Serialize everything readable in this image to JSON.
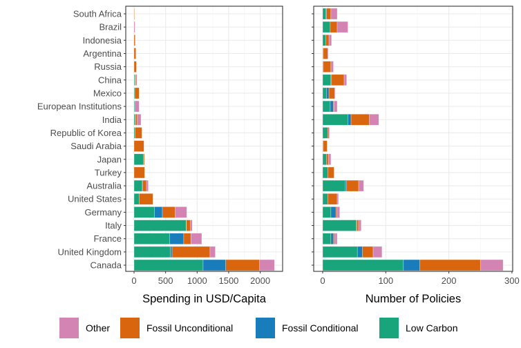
{
  "chart_data": [
    {
      "type": "bar",
      "orientation": "horizontal",
      "stacked": true,
      "xlabel": "Spending in USD/Capita",
      "xlim": [
        0,
        2300
      ],
      "xticks": [
        0,
        500,
        1000,
        1500,
        2000
      ],
      "grid": true,
      "categories": [
        "South Africa",
        "Brazil",
        "Indonesia",
        "Argentina",
        "Russia",
        "China",
        "Mexico",
        "European Institutions",
        "India",
        "Republic of Korea",
        "Saudi Arabia",
        "Japan",
        "Turkey",
        "Australia",
        "United States",
        "Germany",
        "Italy",
        "France",
        "United Kingdom",
        "Canada"
      ],
      "series": [
        {
          "name": "Low Carbon",
          "color": "#19a57c",
          "values": [
            0,
            0,
            0,
            0,
            0,
            11,
            11,
            11,
            18,
            18,
            0,
            150,
            0,
            131,
            80,
            325,
            825,
            566,
            577,
            1095
          ]
        },
        {
          "name": "Fossil Conditional",
          "color": "#1a7dbb",
          "values": [
            0,
            0,
            0,
            0,
            0,
            5,
            0,
            0,
            5,
            0,
            0,
            0,
            0,
            5,
            0,
            124,
            5,
            222,
            25,
            358
          ]
        },
        {
          "name": "Fossil Unconditional",
          "color": "#d9650e",
          "values": [
            7,
            0,
            18,
            29,
            37,
            13,
            69,
            0,
            28,
            106,
            157,
            14,
            168,
            61,
            219,
            201,
            64,
            113,
            602,
            536
          ]
        },
        {
          "name": "Other",
          "color": "#d484b3",
          "values": [
            0,
            15,
            0,
            0,
            0,
            18,
            0,
            69,
            59,
            0,
            0,
            0,
            0,
            29,
            0,
            186,
            29,
            172,
            84,
            237
          ]
        }
      ]
    },
    {
      "type": "bar",
      "orientation": "horizontal",
      "stacked": true,
      "xlabel": "Number of Policies",
      "xlim": [
        0,
        300
      ],
      "xticks": [
        0,
        100,
        200,
        300
      ],
      "grid": true,
      "categories": [
        "South Africa",
        "Brazil",
        "Indonesia",
        "Argentina",
        "Russia",
        "China",
        "Mexico",
        "European Institutions",
        "India",
        "Republic of Korea",
        "Saudi Arabia",
        "Japan",
        "Turkey",
        "Australia",
        "United States",
        "Germany",
        "Italy",
        "France",
        "United Kingdom",
        "Canada"
      ],
      "series": [
        {
          "name": "Low Carbon",
          "color": "#19a57c",
          "values": [
            5,
            12,
            5,
            1,
            1,
            13,
            6,
            12,
            40,
            8,
            1,
            6,
            8,
            36,
            8,
            13,
            53,
            13,
            55,
            128
          ]
        },
        {
          "name": "Fossil Conditional",
          "color": "#1a7dbb",
          "values": [
            1,
            0,
            0,
            0,
            0,
            1,
            4,
            5,
            5,
            0,
            0,
            0,
            0,
            2,
            0,
            8,
            1,
            4,
            8,
            26
          ]
        },
        {
          "name": "Fossil Unconditional",
          "color": "#d9650e",
          "values": [
            7,
            11,
            5,
            7,
            12,
            20,
            9,
            1,
            29,
            2,
            6,
            3,
            10,
            19,
            15,
            2,
            3,
            2,
            17,
            96
          ]
        },
        {
          "name": "Other",
          "color": "#d484b3",
          "values": [
            10,
            17,
            4,
            1,
            4,
            4,
            1,
            5,
            15,
            1,
            0,
            4,
            0,
            8,
            2,
            4,
            4,
            4,
            14,
            36
          ]
        }
      ]
    }
  ],
  "legend": {
    "placement": "bottom",
    "items": [
      {
        "label": "Other",
        "color": "#d484b3"
      },
      {
        "label": "Fossil Unconditional",
        "color": "#d9650e"
      },
      {
        "label": "Fossil Conditional",
        "color": "#1a7dbb"
      },
      {
        "label": "Low Carbon",
        "color": "#19a57c"
      }
    ]
  }
}
